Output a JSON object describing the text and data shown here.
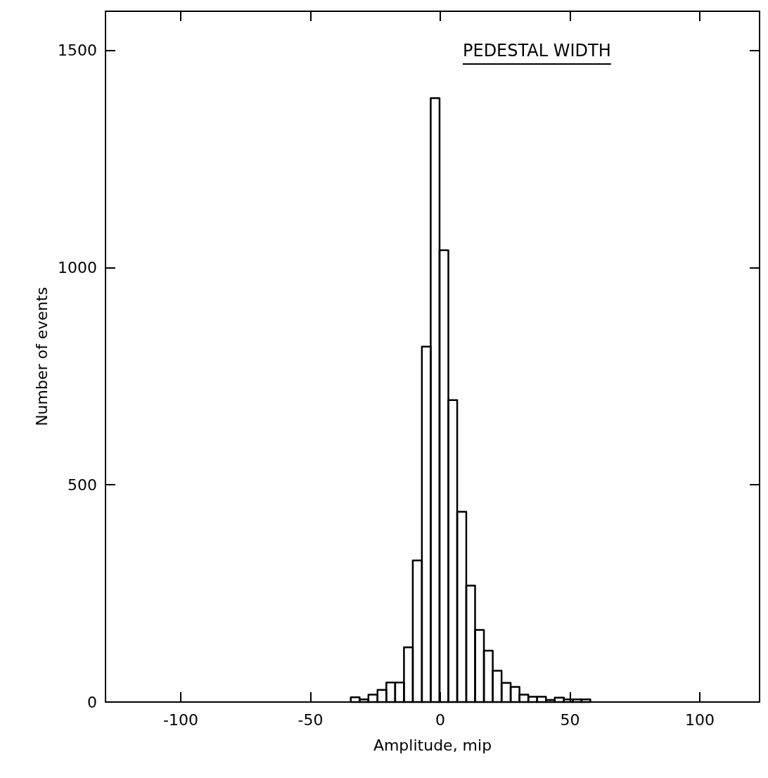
{
  "chart_data": {
    "type": "histogram",
    "xlabel": "Amplitude, mip",
    "ylabel": "Number of events",
    "annotations": [
      "PEDESTAL WIDTH"
    ],
    "bins": [
      -34.5,
      -31.1,
      -27.7,
      -24.2,
      -20.8,
      -17.4,
      -14.0,
      -10.6,
      -7.1,
      -3.7,
      -0.3,
      3.1,
      6.5,
      10.0,
      13.4,
      16.8,
      20.2,
      23.6,
      27.1,
      30.5,
      33.9,
      37.3,
      40.7,
      44.1,
      47.6,
      51.0,
      54.4,
      57.8
    ],
    "values": [
      11,
      6,
      17,
      28,
      45,
      45,
      126,
      326,
      818,
      1390,
      1040,
      695,
      438,
      268,
      166,
      118,
      72,
      44,
      35,
      17,
      12,
      12,
      5,
      10,
      6,
      6,
      6
    ],
    "color": "#000000",
    "xlim": [
      -129,
      123
    ],
    "xticks": [
      -100,
      -50,
      0,
      50,
      100
    ],
    "ylim": [
      0,
      1590
    ],
    "yticks": [
      0,
      500,
      1000,
      1500
    ],
    "grid": false
  }
}
